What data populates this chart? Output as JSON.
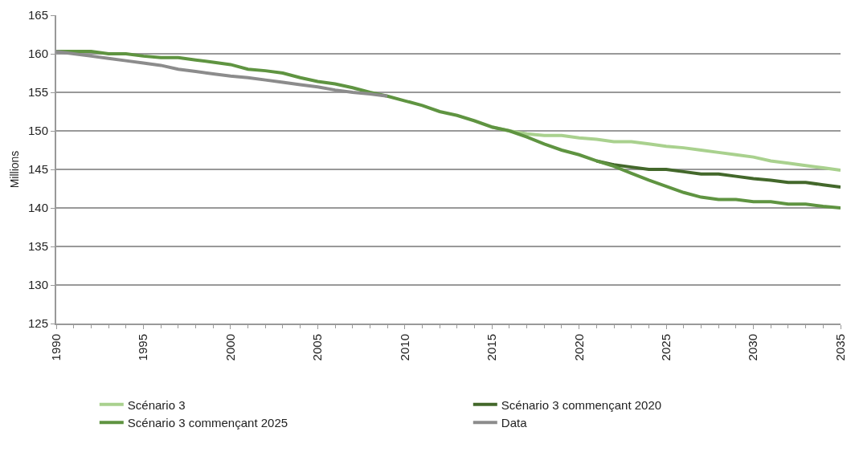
{
  "chart_data": {
    "type": "line",
    "ylabel": "Millions",
    "ylim": [
      125,
      165
    ],
    "yticks": [
      125,
      130,
      135,
      140,
      145,
      150,
      155,
      160,
      165
    ],
    "xlim": [
      1990,
      2035
    ],
    "xticks": [
      1990,
      1995,
      2000,
      2005,
      2010,
      2015,
      2020,
      2025,
      2030,
      2035
    ],
    "grid": "y",
    "legend": "bottom",
    "marker": "none",
    "line_style": "solid",
    "x": [
      1990,
      1991,
      1992,
      1993,
      1994,
      1995,
      1996,
      1997,
      1998,
      1999,
      2000,
      2001,
      2002,
      2003,
      2004,
      2005,
      2006,
      2007,
      2008,
      2009,
      2010,
      2011,
      2012,
      2013,
      2014,
      2015,
      2016,
      2017,
      2018,
      2019,
      2020,
      2021,
      2022,
      2023,
      2024,
      2025,
      2026,
      2027,
      2028,
      2029,
      2030,
      2031,
      2032,
      2033,
      2034,
      2035
    ],
    "series": [
      {
        "name": "Scénario 3",
        "color": "#a9d18e",
        "values": [
          null,
          null,
          null,
          null,
          null,
          null,
          null,
          null,
          null,
          null,
          null,
          null,
          null,
          null,
          null,
          null,
          null,
          null,
          null,
          null,
          null,
          null,
          null,
          null,
          null,
          150.5,
          150.0,
          149.6,
          149.4,
          149.4,
          149.1,
          148.9,
          148.6,
          148.6,
          148.3,
          148.0,
          147.8,
          147.5,
          147.2,
          146.9,
          146.6,
          146.1,
          145.8,
          145.5,
          145.2,
          144.9
        ]
      },
      {
        "name": "Scénario 3 commençant 2020",
        "color": "#43682b",
        "values": [
          null,
          null,
          null,
          null,
          null,
          null,
          null,
          null,
          null,
          null,
          null,
          null,
          null,
          null,
          null,
          null,
          null,
          null,
          null,
          null,
          null,
          null,
          null,
          null,
          null,
          null,
          null,
          null,
          null,
          null,
          null,
          146.1,
          145.6,
          145.3,
          145.0,
          145.0,
          144.7,
          144.4,
          144.4,
          144.1,
          143.8,
          143.6,
          143.3,
          143.3,
          143.0,
          142.7
        ]
      },
      {
        "name": "Scénario 3 commençant 2025",
        "color": "#5f9441",
        "values": [
          160.3,
          160.3,
          160.3,
          160.0,
          160.0,
          159.7,
          159.5,
          159.5,
          159.2,
          158.9,
          158.6,
          158.0,
          157.8,
          157.5,
          156.9,
          156.4,
          156.1,
          155.6,
          155.0,
          154.5,
          153.9,
          153.3,
          152.5,
          152.0,
          151.3,
          150.5,
          150.0,
          149.2,
          148.3,
          147.5,
          146.9,
          146.1,
          145.4,
          144.5,
          143.6,
          142.8,
          142.0,
          141.4,
          141.1,
          141.1,
          140.8,
          140.8,
          140.5,
          140.5,
          140.2,
          140.0
        ]
      },
      {
        "name": "Data",
        "color": "#8c8c8c",
        "values": [
          160.3,
          160.0,
          159.7,
          159.4,
          159.1,
          158.8,
          158.5,
          158.0,
          157.7,
          157.4,
          157.1,
          156.9,
          156.6,
          156.3,
          156.0,
          155.7,
          155.3,
          155.0,
          154.8,
          154.5,
          null,
          null,
          null,
          null,
          null,
          null,
          null,
          null,
          null,
          null,
          null,
          null,
          null,
          null,
          null,
          null,
          null,
          null,
          null,
          null,
          null,
          null,
          null,
          null,
          null,
          null
        ]
      }
    ]
  }
}
